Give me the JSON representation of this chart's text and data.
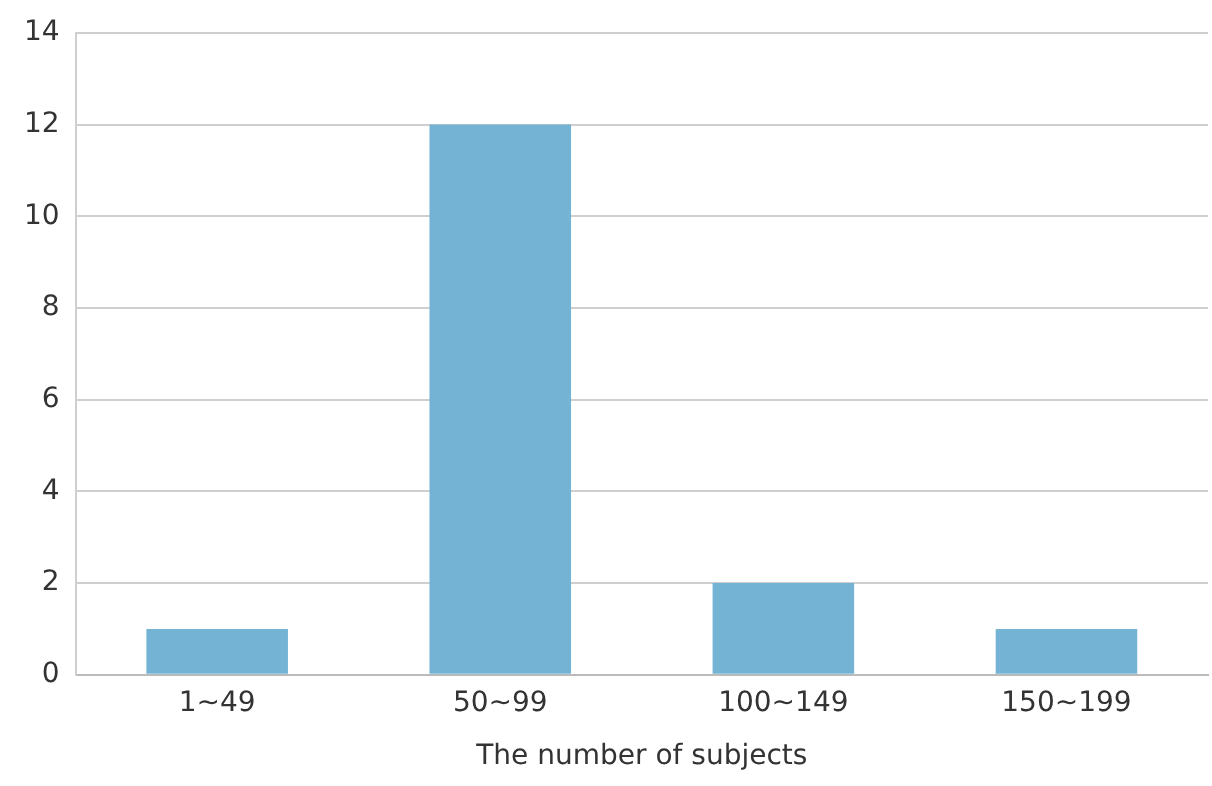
{
  "chart_data": {
    "type": "bar",
    "xlabel": "The number of subjects",
    "categories": [
      "1~49",
      "50~99",
      "100~149",
      "150~199"
    ],
    "values": [
      1,
      12,
      2,
      1
    ],
    "color": "#74b3d4",
    "ylim": [
      0,
      14
    ],
    "yticks": [
      0,
      2,
      4,
      6,
      8,
      10,
      12,
      14
    ],
    "grid": "y"
  }
}
